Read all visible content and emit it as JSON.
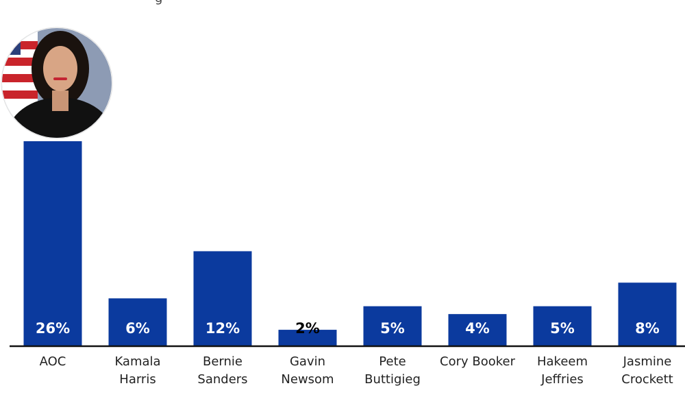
{
  "chart_data": {
    "type": "bar",
    "categories": [
      [
        "AOC"
      ],
      [
        "Kamala",
        "Harris"
      ],
      [
        "Bernie",
        "Sanders"
      ],
      [
        "Gavin",
        "Newsom"
      ],
      [
        "Pete",
        "Buttigieg"
      ],
      [
        "Cory Booker"
      ],
      [
        "Hakeem",
        "Jeffries"
      ],
      [
        "Jasmine",
        "Crockett"
      ]
    ],
    "values": [
      26,
      6,
      12,
      2,
      5,
      4,
      5,
      8
    ],
    "value_labels": [
      "26%",
      "6%",
      "12%",
      "2%",
      "5%",
      "4%",
      "5%",
      "8%"
    ],
    "ylim": [
      0,
      26
    ],
    "grid": false,
    "legend": "none",
    "colors": {
      "bar": "#0b3a9e",
      "label_inside": "#ffffff",
      "label_small": "#000000",
      "axis": "#111111"
    },
    "annotations": [
      {
        "type": "portrait",
        "attached_to": "AOC"
      }
    ]
  },
  "title_fragment": "g"
}
